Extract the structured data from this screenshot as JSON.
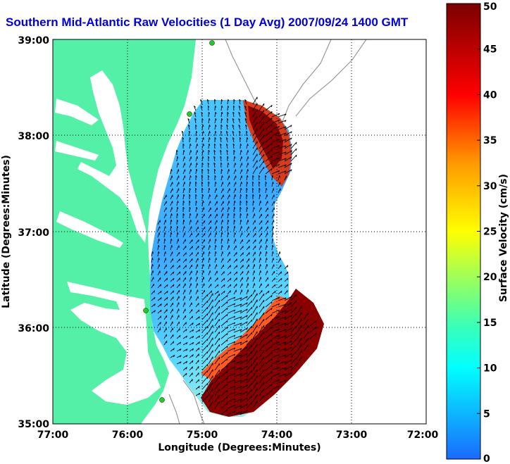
{
  "title": "Southern Mid-Atlantic Raw Velocities (1 Day Avg) 2007/09/24 1400 GMT",
  "xlabel": "Longitude (Degrees:Minutes)",
  "ylabel": "Latitude (Degrees:Minutes)",
  "x_ticks": [
    "77:00",
    "76:00",
    "75:00",
    "74:00",
    "73:00",
    "72:00"
  ],
  "y_ticks": [
    "39:00",
    "38:00",
    "37:00",
    "36:00",
    "35:00"
  ],
  "colorbar": {
    "label": "Surface Velocity (cm/s)",
    "ticks": [
      "50",
      "45",
      "40",
      "35",
      "30",
      "25",
      "20",
      "15",
      "10",
      "5",
      "0"
    ],
    "range": [
      0,
      50
    ]
  },
  "colors": {
    "land": "#55f0a8",
    "water": "#ffffff",
    "title": "#0000dd",
    "slow": "#1e7dff",
    "fast": "#7a0000"
  }
}
